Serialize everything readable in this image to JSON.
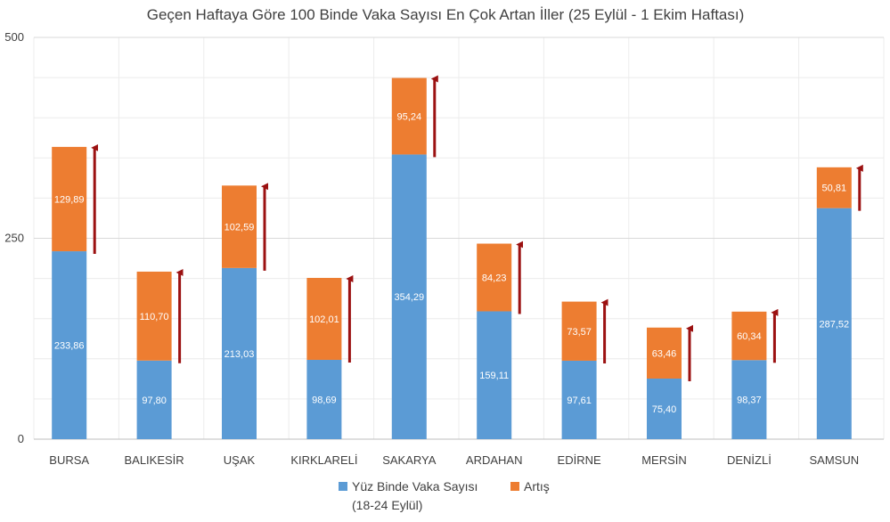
{
  "chart_data": {
    "type": "bar",
    "stacked": true,
    "title": "Geçen Haftaya Göre 100 Binde Vaka Sayısı En Çok Artan İller (25 Eylül - 1 Ekim Haftası)",
    "xlabel": "",
    "ylabel": "",
    "ylim": [
      0,
      500
    ],
    "yticks": [
      "0",
      "250",
      "500"
    ],
    "grid": true,
    "legend_position": "bottom",
    "categories": [
      "BURSA",
      "BALIKESİR",
      "UŞAK",
      "KIRKLARELİ",
      "SAKARYA",
      "ARDAHAN",
      "EDİRNE",
      "MERSİN",
      "DENİZLİ",
      "SAMSUN"
    ],
    "series": [
      {
        "name": "Yüz Binde Vaka Sayısı (18-24 Eylül)",
        "color": "#5b9bd5",
        "values": [
          233.86,
          97.8,
          213.03,
          98.69,
          354.29,
          159.11,
          97.61,
          75.4,
          98.37,
          287.52
        ],
        "labels": [
          "233,86",
          "97,80",
          "213,03",
          "98,69",
          "354,29",
          "159,11",
          "97,61",
          "75,40",
          "98,37",
          "287,52"
        ]
      },
      {
        "name": "Artış",
        "color": "#ed7d31",
        "values": [
          129.89,
          110.7,
          102.59,
          102.01,
          95.24,
          84.23,
          73.57,
          63.46,
          60.34,
          50.81
        ],
        "labels": [
          "129,89",
          "110,70",
          "102,59",
          "102,01",
          "95,24",
          "84,23",
          "73,57",
          "63,46",
          "60,34",
          "50,81"
        ]
      }
    ],
    "arrow_color": "#9b1111",
    "legend": {
      "items": [
        {
          "name_line1": "Yüz Binde Vaka Sayısı",
          "name_line2": "(18-24 Eylül)",
          "color": "#5b9bd5"
        },
        {
          "name_line1": "Artış",
          "name_line2": "",
          "color": "#ed7d31"
        }
      ]
    }
  }
}
